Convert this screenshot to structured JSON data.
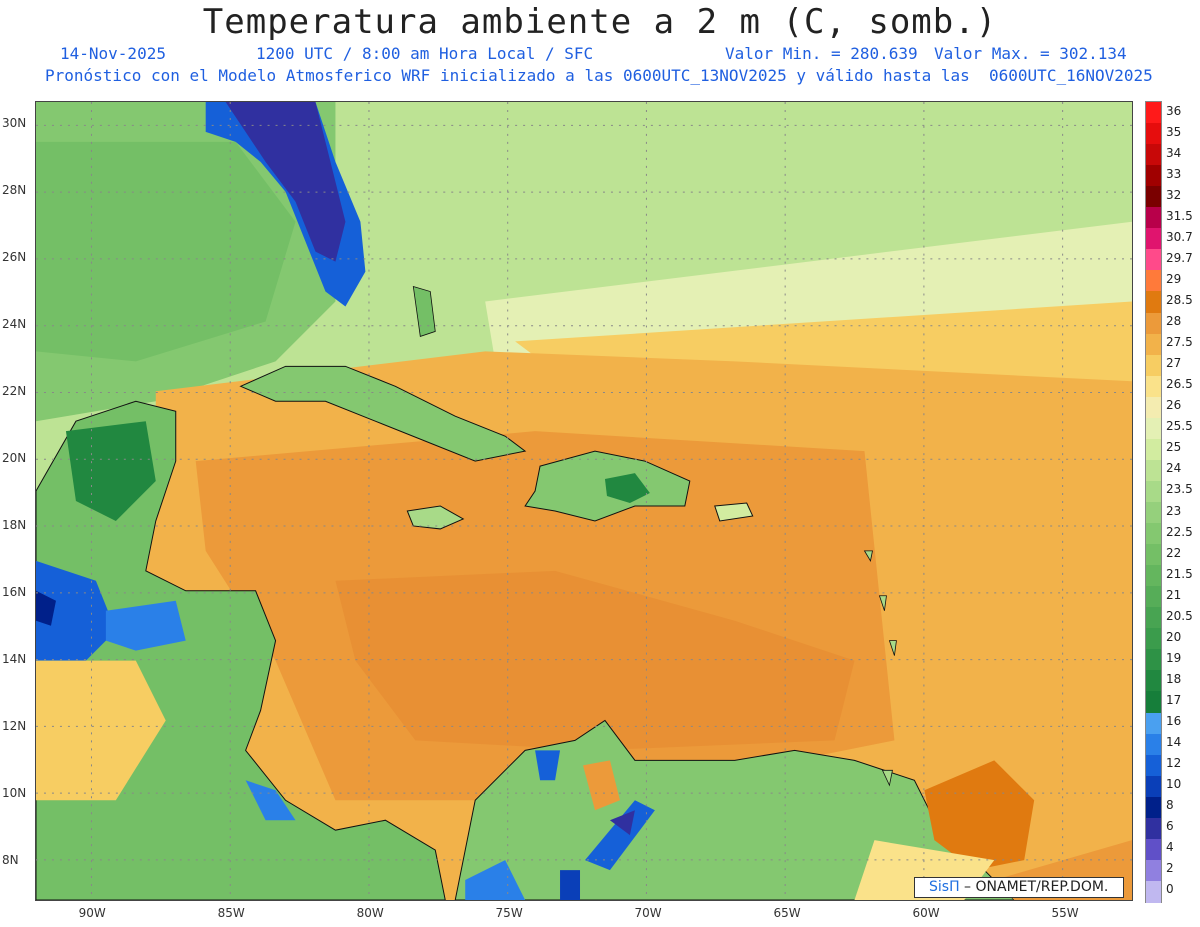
{
  "header": {
    "title": "Temperatura ambiente a 2 m (C, somb.)",
    "date": "14-Nov-2025",
    "time": "1200 UTC / 8:00 am Hora Local / SFC",
    "min_value": "Valor Min. = 280.639",
    "max_value": "Valor Max. = 302.134",
    "model_info": "Pronóstico con el Modelo Atmosferico WRF inicializado a las 0600UTC_13NOV2025 y válido hasta las  0600UTC_16NOV2025"
  },
  "map": {
    "lat_labels": [
      "30N",
      "28N",
      "26N",
      "24N",
      "22N",
      "20N",
      "18N",
      "16N",
      "14N",
      "12N",
      "10N",
      "8N"
    ],
    "lat_values": [
      30,
      28,
      26,
      24,
      22,
      20,
      18,
      16,
      14,
      12,
      10,
      8
    ],
    "lon_labels": [
      "90W",
      "85W",
      "80W",
      "75W",
      "70W",
      "65W",
      "60W",
      "55W"
    ],
    "lon_values": [
      -90,
      -85,
      -80,
      -75,
      -70,
      -65,
      -60,
      -55
    ],
    "lon_range": [
      -92,
      -52.5
    ],
    "lat_range": [
      6.8,
      30.7
    ],
    "gridlines": true
  },
  "colorbar": {
    "labels": [
      "36",
      "35",
      "34",
      "33",
      "32",
      "31.5",
      "30.7",
      "29.7",
      "29",
      "28.5",
      "28",
      "27.5",
      "27",
      "26.5",
      "26",
      "25.5",
      "25",
      "24",
      "23.5",
      "23",
      "22.5",
      "22",
      "21.5",
      "21",
      "20.5",
      "20",
      "19",
      "18",
      "17",
      "16",
      "14",
      "12",
      "10",
      "8",
      "6",
      "4",
      "2",
      "0"
    ],
    "colors": [
      "#ff1a1a",
      "#e60d0d",
      "#c80808",
      "#a00000",
      "#7a0000",
      "#b8004a",
      "#e0146e",
      "#ff4a8a",
      "#ff7a3a",
      "#e07a10",
      "#ec9a3a",
      "#f2b24a",
      "#f7cd62",
      "#fae28a",
      "#f4ecb0",
      "#e4f0b4",
      "#d2eca0",
      "#bde394",
      "#a8da88",
      "#95d07c",
      "#84c870",
      "#74bf66",
      "#64b65e",
      "#56ad58",
      "#48a452",
      "#3b9c4c",
      "#2e9246",
      "#218840",
      "#167e3a",
      "#4aa0f0",
      "#2a80e8",
      "#1560d8",
      "#0a3fb8",
      "#00208a",
      "#3030a0",
      "#6050c8",
      "#9080e0",
      "#c0b8f0"
    ]
  },
  "credit": {
    "sis": "SisΠ",
    "org": " – ONAMET/REP.DOM."
  }
}
